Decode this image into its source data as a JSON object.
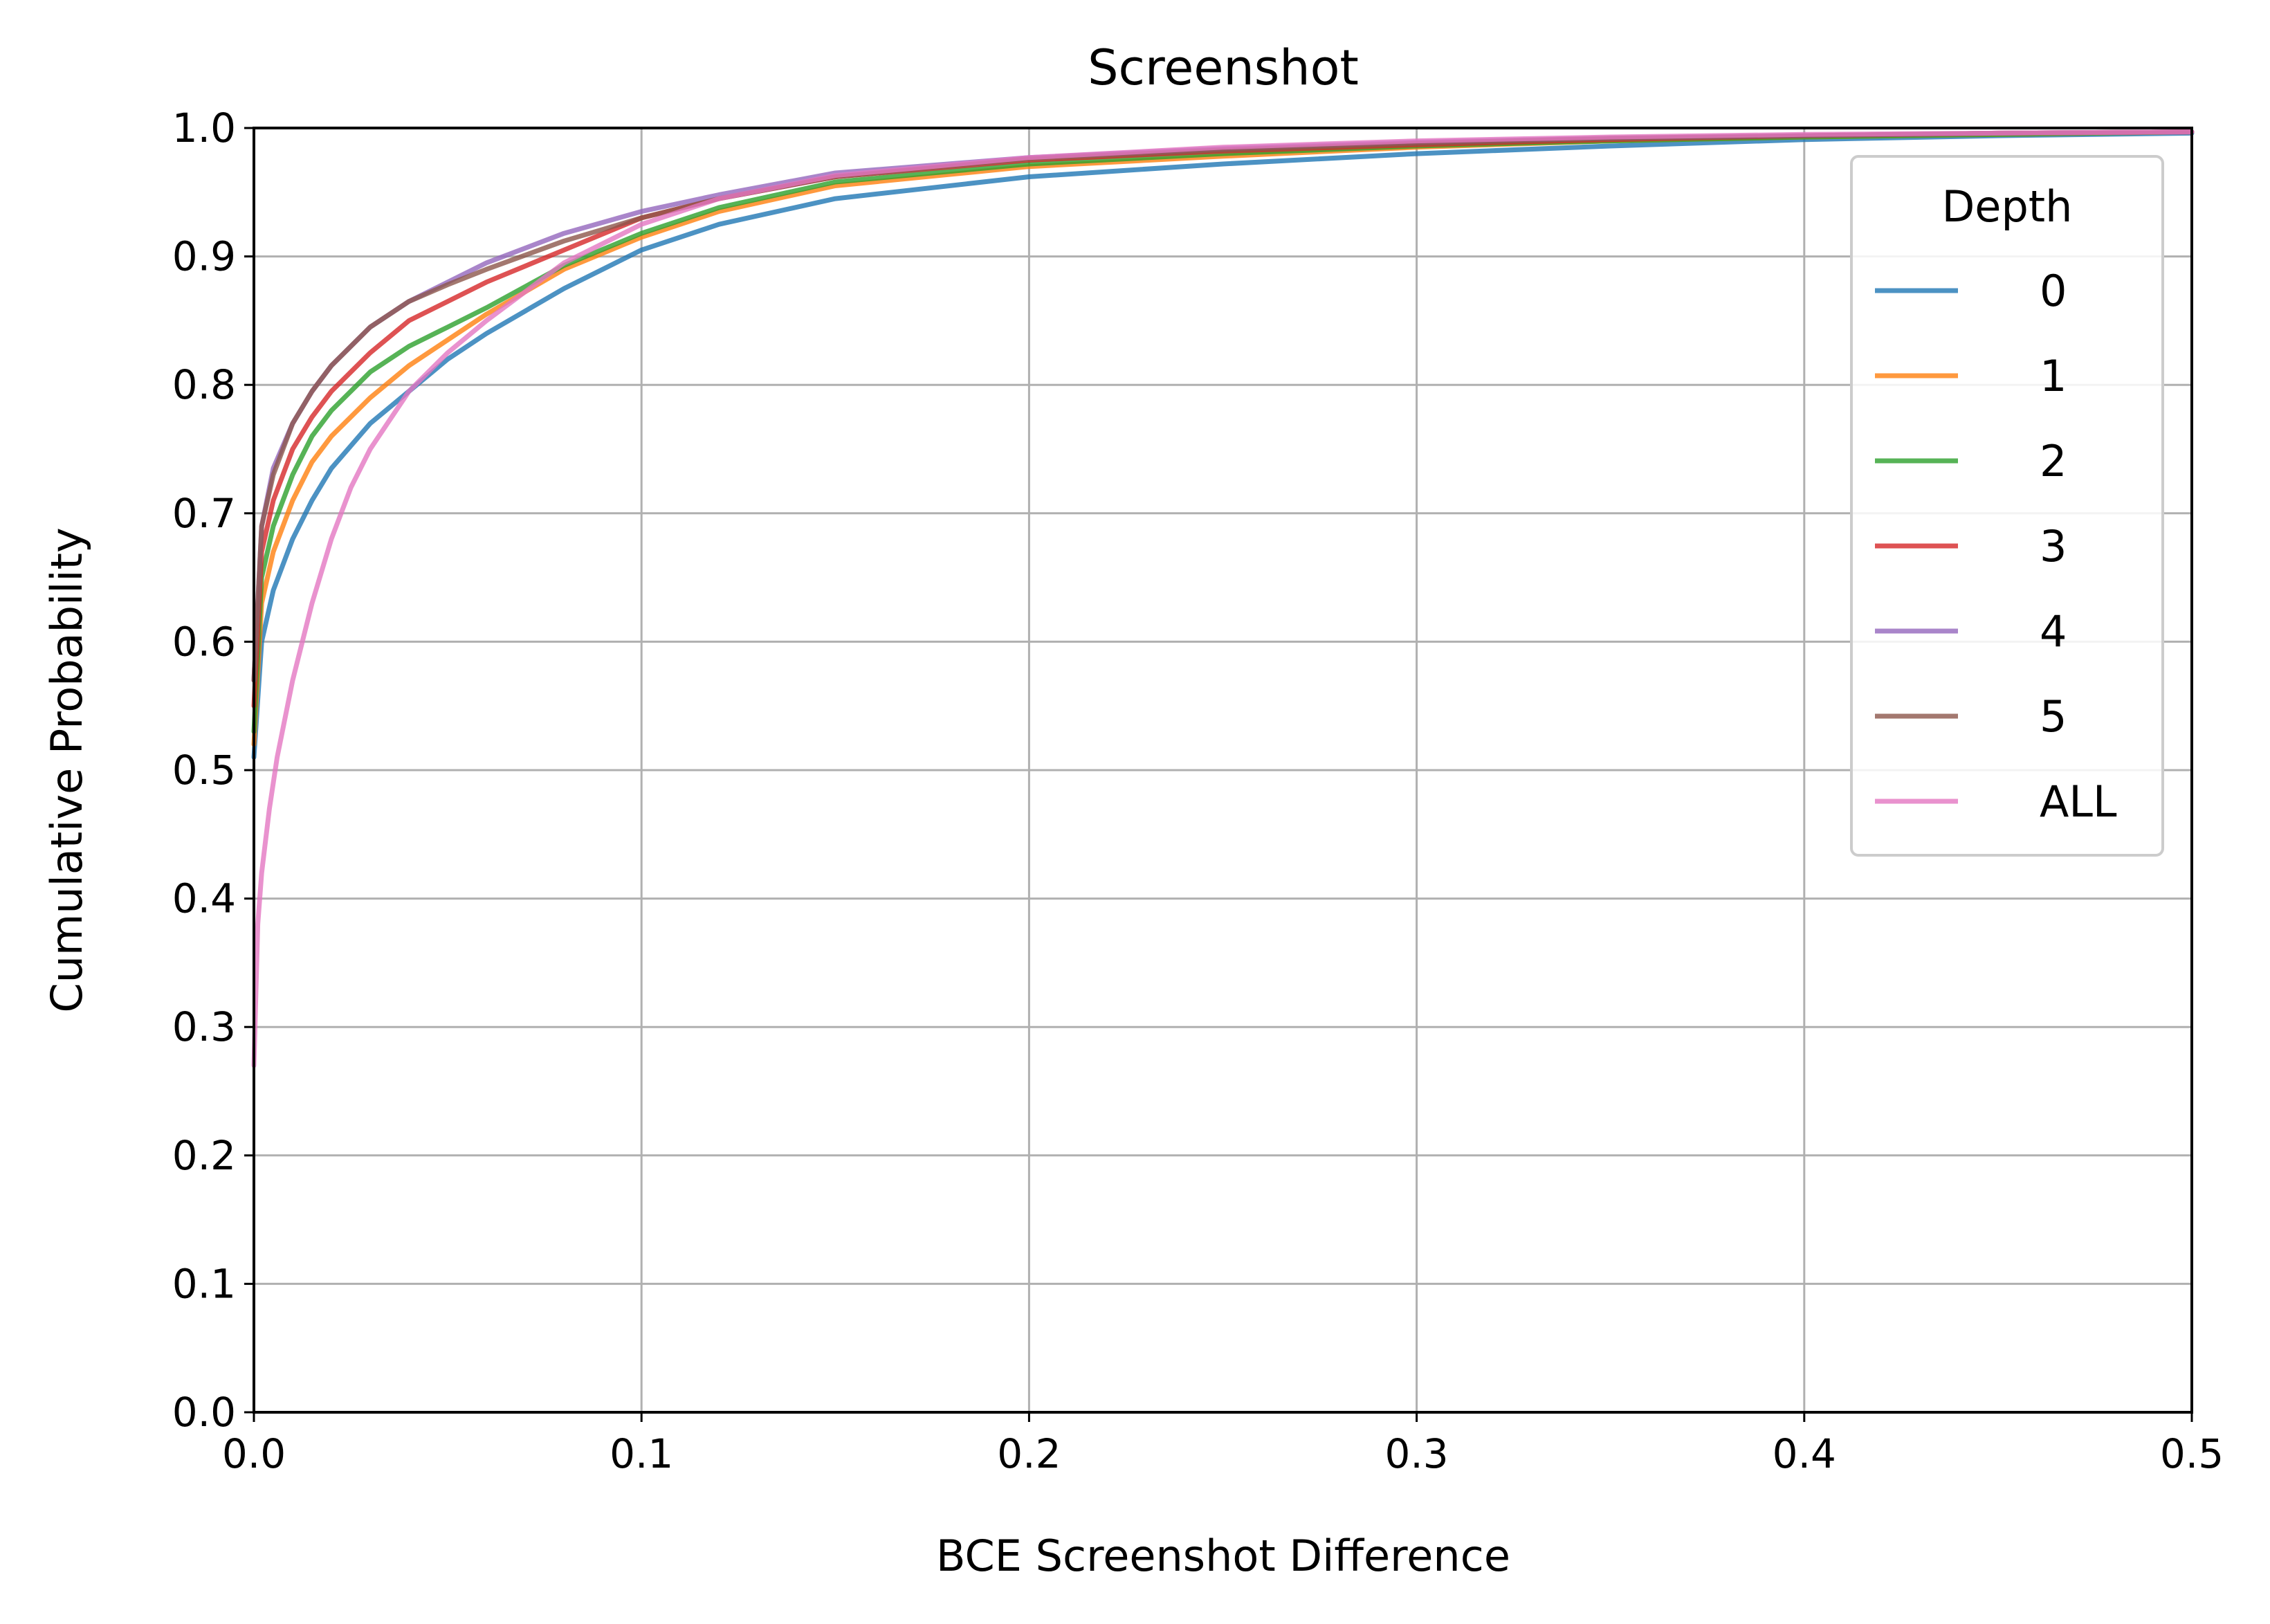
{
  "chart_data": {
    "type": "line",
    "title": "Screenshot",
    "xlabel": "BCE Screenshot Difference",
    "ylabel": "Cumulative Probability",
    "xlim": [
      0.0,
      0.5
    ],
    "ylim": [
      0.0,
      1.0
    ],
    "xticks": [
      "0.0",
      "0.1",
      "0.2",
      "0.3",
      "0.4",
      "0.5"
    ],
    "yticks": [
      "0.0",
      "0.1",
      "0.2",
      "0.3",
      "0.4",
      "0.5",
      "0.6",
      "0.7",
      "0.8",
      "0.9",
      "1.0"
    ],
    "grid": true,
    "legend": {
      "title": "Depth",
      "placement": "top-right"
    },
    "series": [
      {
        "name": "0",
        "color": "#1f77b4",
        "x": [
          0.0,
          0.002,
          0.005,
          0.01,
          0.015,
          0.02,
          0.03,
          0.04,
          0.05,
          0.06,
          0.08,
          0.1,
          0.12,
          0.15,
          0.2,
          0.25,
          0.3,
          0.35,
          0.4,
          0.45,
          0.5
        ],
        "y": [
          0.51,
          0.6,
          0.64,
          0.68,
          0.71,
          0.735,
          0.77,
          0.795,
          0.82,
          0.84,
          0.875,
          0.905,
          0.925,
          0.945,
          0.962,
          0.972,
          0.98,
          0.986,
          0.991,
          0.994,
          0.996
        ]
      },
      {
        "name": "1",
        "color": "#ff7f0e",
        "x": [
          0.0,
          0.002,
          0.005,
          0.01,
          0.015,
          0.02,
          0.03,
          0.04,
          0.05,
          0.06,
          0.08,
          0.1,
          0.12,
          0.15,
          0.2,
          0.25,
          0.3,
          0.35,
          0.4,
          0.45,
          0.5
        ],
        "y": [
          0.52,
          0.63,
          0.67,
          0.71,
          0.74,
          0.76,
          0.79,
          0.815,
          0.835,
          0.855,
          0.89,
          0.915,
          0.935,
          0.955,
          0.97,
          0.978,
          0.985,
          0.99,
          0.993,
          0.995,
          0.997
        ]
      },
      {
        "name": "2",
        "color": "#2ca02c",
        "x": [
          0.0,
          0.002,
          0.005,
          0.01,
          0.015,
          0.02,
          0.03,
          0.04,
          0.05,
          0.06,
          0.08,
          0.1,
          0.12,
          0.15,
          0.2,
          0.25,
          0.3,
          0.35,
          0.4,
          0.45,
          0.5
        ],
        "y": [
          0.53,
          0.65,
          0.69,
          0.73,
          0.76,
          0.78,
          0.81,
          0.83,
          0.845,
          0.86,
          0.893,
          0.918,
          0.938,
          0.958,
          0.972,
          0.98,
          0.986,
          0.99,
          0.993,
          0.995,
          0.997
        ]
      },
      {
        "name": "3",
        "color": "#d62728",
        "x": [
          0.0,
          0.002,
          0.005,
          0.01,
          0.015,
          0.02,
          0.03,
          0.04,
          0.05,
          0.06,
          0.08,
          0.1,
          0.12,
          0.15,
          0.2,
          0.25,
          0.3,
          0.35,
          0.4,
          0.45,
          0.5
        ],
        "y": [
          0.55,
          0.67,
          0.71,
          0.75,
          0.775,
          0.795,
          0.825,
          0.85,
          0.865,
          0.88,
          0.905,
          0.93,
          0.945,
          0.962,
          0.975,
          0.982,
          0.987,
          0.991,
          0.994,
          0.996,
          0.997
        ]
      },
      {
        "name": "4",
        "color": "#9467bd",
        "x": [
          0.0,
          0.002,
          0.005,
          0.01,
          0.015,
          0.02,
          0.03,
          0.04,
          0.05,
          0.06,
          0.08,
          0.1,
          0.12,
          0.15,
          0.2,
          0.25,
          0.3,
          0.35,
          0.4,
          0.45,
          0.5
        ],
        "y": [
          0.57,
          0.69,
          0.735,
          0.77,
          0.795,
          0.815,
          0.845,
          0.865,
          0.88,
          0.895,
          0.918,
          0.935,
          0.948,
          0.965,
          0.977,
          0.984,
          0.989,
          0.992,
          0.994,
          0.996,
          0.997
        ]
      },
      {
        "name": "5",
        "color": "#8c564b",
        "x": [
          0.0,
          0.002,
          0.005,
          0.01,
          0.015,
          0.02,
          0.03,
          0.04,
          0.05,
          0.06,
          0.08,
          0.1,
          0.12,
          0.15,
          0.2,
          0.25,
          0.3,
          0.35,
          0.4,
          0.45,
          0.5
        ],
        "y": [
          0.57,
          0.69,
          0.73,
          0.77,
          0.795,
          0.815,
          0.845,
          0.865,
          0.878,
          0.89,
          0.912,
          0.93,
          0.945,
          0.962,
          0.976,
          0.983,
          0.988,
          0.992,
          0.994,
          0.996,
          0.997
        ]
      },
      {
        "name": "ALL",
        "color": "#e377c2",
        "x": [
          0.0,
          0.001,
          0.002,
          0.004,
          0.006,
          0.01,
          0.015,
          0.02,
          0.025,
          0.03,
          0.04,
          0.05,
          0.06,
          0.08,
          0.1,
          0.12,
          0.15,
          0.2,
          0.25,
          0.3,
          0.35,
          0.4,
          0.45,
          0.5
        ],
        "y": [
          0.27,
          0.38,
          0.42,
          0.47,
          0.51,
          0.57,
          0.63,
          0.68,
          0.72,
          0.75,
          0.795,
          0.825,
          0.85,
          0.895,
          0.925,
          0.945,
          0.963,
          0.977,
          0.985,
          0.99,
          0.993,
          0.995,
          0.996,
          0.997
        ]
      }
    ]
  }
}
